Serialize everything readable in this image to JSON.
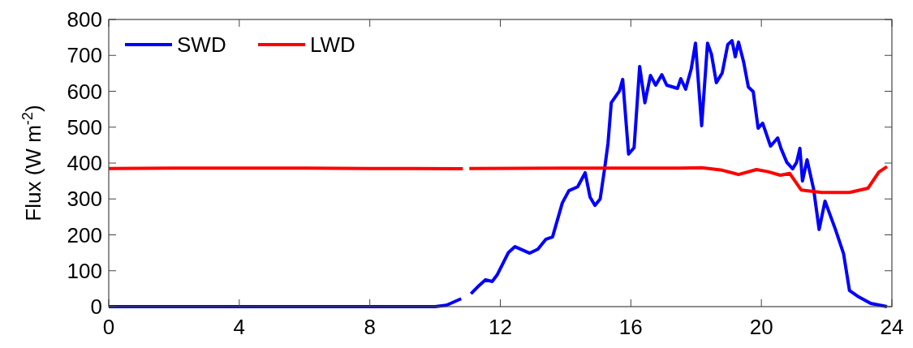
{
  "chart_data": {
    "type": "line",
    "ylabel": "Flux (W m$^{-2}$)",
    "xlim": [
      0,
      24
    ],
    "xticks": [
      0,
      4,
      8,
      12,
      16,
      20,
      24
    ],
    "ylim": [
      0,
      800
    ],
    "yticks": [
      0,
      100,
      200,
      300,
      400,
      500,
      600,
      700,
      800
    ],
    "grid": false,
    "legend": "top left",
    "line_style": "solid",
    "marker": "none",
    "series": [
      {
        "name": "SWD",
        "color": "#0000ff",
        "x": [
          0,
          4,
          8,
          10.0,
          10.35,
          10.8,
          10.95,
          11.1,
          11.35,
          11.55,
          11.75,
          11.9,
          12.25,
          12.45,
          12.9,
          13.15,
          13.4,
          13.6,
          13.9,
          14.1,
          14.37,
          14.6,
          14.75,
          14.9,
          15.06,
          15.2,
          15.3,
          15.4,
          15.65,
          15.75,
          15.93,
          16.1,
          16.27,
          16.43,
          16.6,
          16.76,
          16.95,
          17.1,
          17.43,
          17.53,
          17.68,
          17.85,
          17.98,
          18.17,
          18.35,
          18.47,
          18.62,
          18.8,
          18.97,
          19.1,
          19.2,
          19.3,
          19.46,
          19.6,
          19.75,
          19.9,
          20.04,
          20.28,
          20.5,
          20.6,
          20.78,
          20.96,
          21.08,
          21.18,
          21.26,
          21.4,
          21.6,
          21.77,
          21.95,
          22.27,
          22.52,
          22.7,
          22.95,
          23.35,
          23.85
        ],
        "values": [
          0,
          0,
          0,
          0,
          4,
          22,
          null,
          36,
          59,
          75,
          70,
          88,
          151,
          167,
          149,
          160,
          188,
          194,
          289,
          323,
          334,
          373,
          305,
          282,
          300,
          387,
          455,
          568,
          601,
          633,
          425,
          443,
          669,
          568,
          644,
          617,
          646,
          617,
          608,
          635,
          606,
          662,
          734,
          504,
          734,
          703,
          624,
          651,
          730,
          741,
          696,
          737,
          680,
          612,
          599,
          497,
          511,
          447,
          470,
          441,
          402,
          384,
          402,
          441,
          350,
          409,
          328,
          215,
          294,
          215,
          147,
          45,
          29,
          9,
          0
        ]
      },
      {
        "name": "LWD",
        "color": "#ff0000",
        "x": [
          0,
          2,
          4,
          6,
          8,
          10.85,
          10.95,
          11.05,
          14,
          17.5,
          18.17,
          18.8,
          19.1,
          19.3,
          19.85,
          20.2,
          20.58,
          20.87,
          21.22,
          21.85,
          22.7,
          23.27,
          23.6,
          23.85
        ],
        "values": [
          385,
          386,
          386,
          386,
          385,
          384,
          null,
          385,
          386,
          386,
          387,
          380,
          373,
          368,
          382,
          376,
          366,
          371,
          325,
          318,
          318,
          330,
          375,
          390
        ]
      }
    ]
  }
}
